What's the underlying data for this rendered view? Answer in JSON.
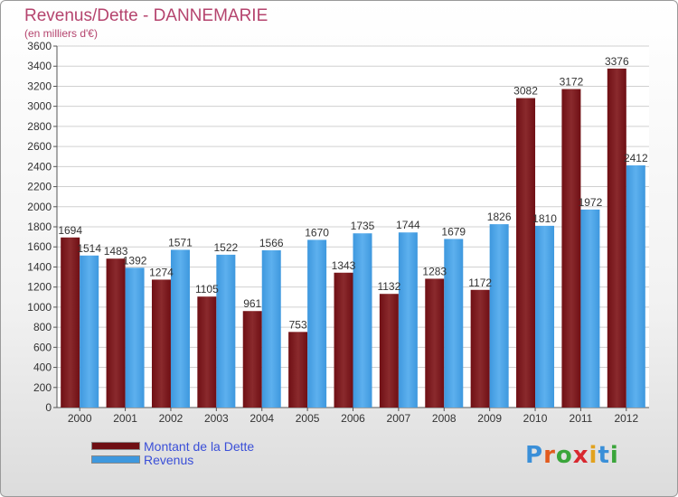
{
  "title": "Revenus/Dette - DANNEMARIE",
  "subtitle": "(en milliers d'€)",
  "colors": {
    "dette": "#6f0f14",
    "revenus": "#3e98de",
    "title": "#b5446e",
    "legend_text": "#3a4fd8"
  },
  "logo": {
    "text": "Proxiti",
    "letters": [
      "P",
      "r",
      "o",
      "x",
      "i",
      "t",
      "i"
    ],
    "colors": [
      "#3a8fd8",
      "#e25b1e",
      "#3aa53a",
      "#d8282f",
      "#e2a21e",
      "#3a8fd8",
      "#3aa53a"
    ]
  },
  "legend": [
    {
      "label": "Montant de la Dette",
      "color": "#6f0f14"
    },
    {
      "label": "Revenus",
      "color": "#3e98de"
    }
  ],
  "chart_data": {
    "type": "bar",
    "title": "Revenus/Dette - DANNEMARIE",
    "subtitle": "(en milliers d'€)",
    "categories": [
      "2000",
      "2001",
      "2002",
      "2003",
      "2004",
      "2005",
      "2006",
      "2007",
      "2008",
      "2009",
      "2010",
      "2011",
      "2012"
    ],
    "series": [
      {
        "name": "Montant de la Dette",
        "values": [
          1694,
          1483,
          1274,
          1105,
          961,
          753,
          1343,
          1132,
          1283,
          1172,
          3082,
          3172,
          3376
        ]
      },
      {
        "name": "Revenus",
        "values": [
          1514,
          1392,
          1571,
          1522,
          1566,
          1670,
          1735,
          1744,
          1679,
          1826,
          1810,
          1972,
          2412
        ]
      }
    ],
    "ylim": [
      0,
      3600
    ],
    "yticks": [
      0,
      200,
      400,
      600,
      800,
      1000,
      1200,
      1400,
      1600,
      1800,
      2000,
      2200,
      2400,
      2600,
      2800,
      3000,
      3200,
      3400,
      3600
    ],
    "grid": true,
    "legend_position": "bottom-left"
  }
}
